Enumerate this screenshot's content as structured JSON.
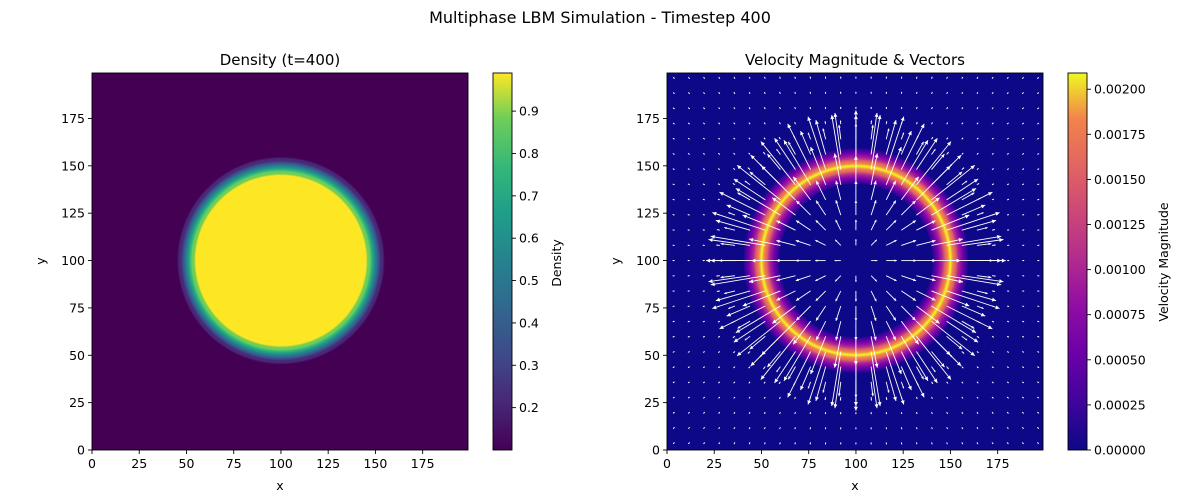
{
  "figure": {
    "suptitle": "Multiphase LBM Simulation - Timestep 400"
  },
  "chart_data": [
    {
      "type": "heatmap",
      "title": "Density (t=400)",
      "xlabel": "x",
      "ylabel": "y",
      "xlim": [
        0,
        199
      ],
      "ylim": [
        0,
        199
      ],
      "xticks": [
        0,
        25,
        50,
        75,
        100,
        125,
        150,
        175
      ],
      "yticks": [
        0,
        25,
        50,
        75,
        100,
        125,
        150,
        175
      ],
      "colormap": "viridis",
      "field": {
        "shape": "circular droplet",
        "center": [
          100,
          100
        ],
        "radius": 50,
        "interface_width": 3,
        "inside_value": 0.98,
        "outside_value": 0.11
      },
      "colorbar": {
        "label": "Density",
        "min": 0.1,
        "max": 0.99,
        "ticks": [
          0.2,
          0.3,
          0.4,
          0.5,
          0.6,
          0.7,
          0.8,
          0.9
        ]
      }
    },
    {
      "type": "heatmap",
      "title": "Velocity Magnitude & Vectors",
      "xlabel": "x",
      "ylabel": "y",
      "xlim": [
        0,
        199
      ],
      "ylim": [
        0,
        199
      ],
      "xticks": [
        0,
        25,
        50,
        75,
        100,
        125,
        150,
        175
      ],
      "yticks": [
        0,
        25,
        50,
        75,
        100,
        125,
        150,
        175
      ],
      "colormap": "plasma",
      "field": {
        "shape": "ring peaked at droplet interface",
        "center": [
          100,
          100
        ],
        "radius": 50,
        "peak_value": 0.0021,
        "ring_width": 7,
        "background_value": 5e-05
      },
      "vectors": {
        "pattern": "radial outward from center",
        "spacing": 8,
        "color": "#ffffff"
      },
      "colorbar": {
        "label": "Velocity Magnitude",
        "min": 0,
        "max": 0.00209,
        "ticks": [
          "0.00000",
          "0.00025",
          "0.00050",
          "0.00075",
          "0.00100",
          "0.00125",
          "0.00150",
          "0.00175",
          "0.00200"
        ]
      }
    }
  ]
}
